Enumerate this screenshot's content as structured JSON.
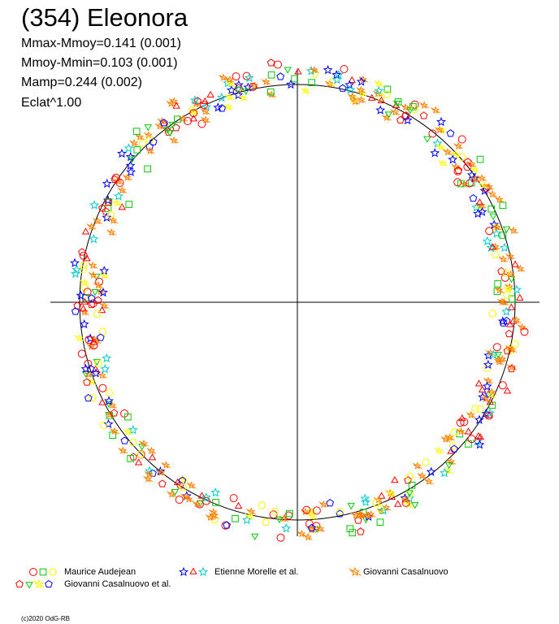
{
  "chart_data": {
    "type": "scatter",
    "title": "(354) Eleonora",
    "stats": [
      "Mmax-Mmoy=0.141 (0.001)",
      "Mmoy-Mmin=0.103 (0.001)",
      "Mamp=0.244 (0.002)",
      "Eclat^1.00"
    ],
    "reference_curve": {
      "shape": "circle",
      "radius": 1.0
    },
    "axes": {
      "crosshair": true,
      "xlim": [
        -1.15,
        1.15
      ],
      "ylim": [
        -1.15,
        1.15
      ]
    },
    "series": [
      {
        "name": "Maurice Audejean",
        "markers": [
          "circle",
          "square",
          "hexagon"
        ],
        "colors": [
          "#ff0000",
          "#00cc00",
          "#ffff00"
        ]
      },
      {
        "name": "Etienne Morelle et al.",
        "markers": [
          "star",
          "triangle",
          "star"
        ],
        "colors": [
          "#0000ff",
          "#ff0000",
          "#00cccc"
        ]
      },
      {
        "name": "Giovanni Casalnuovo",
        "markers": [
          "burst"
        ],
        "colors": [
          "#ff8000"
        ]
      },
      {
        "name": "Giovanni Casalnuovo et al.",
        "markers": [
          "pentagon",
          "triangle-down",
          "burst",
          "pentagon"
        ],
        "colors": [
          "#ff0000",
          "#00cc00",
          "#ffff00",
          "#0000ff"
        ]
      }
    ]
  },
  "credit": "(c)2020 OdG-RB"
}
